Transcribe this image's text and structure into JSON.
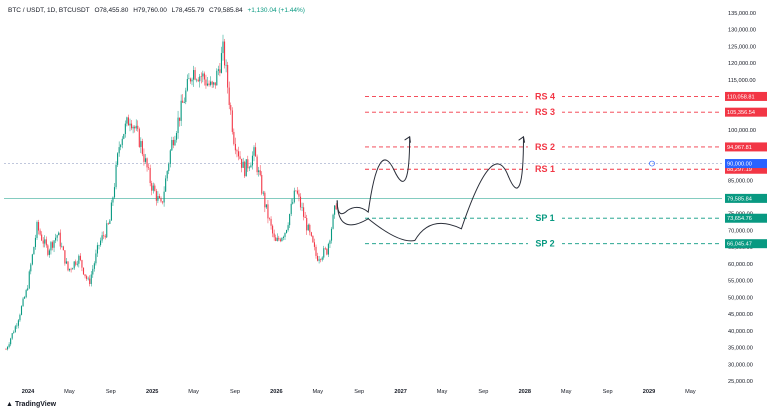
{
  "header": {
    "symbol": "BTC / USDT, 1D, BTCUSDT",
    "open": "O78,455.80",
    "high": "H79,760.00",
    "low": "L78,455.79",
    "close": "C79,585.84",
    "change": "+1,130.04 (+1.44%)"
  },
  "branding": {
    "logo_text": "TradingView"
  },
  "colors": {
    "bull": "#089981",
    "bear": "#f23645",
    "resistance": "#f23645",
    "support": "#089981",
    "price_line": "#089981",
    "tag_90k": "#2962ff"
  },
  "chart_data": {
    "type": "candlestick",
    "title": "BTC / USDT, 1D, BTCUSDT",
    "xlabel": "",
    "ylabel": "",
    "ylim": [
      25000,
      135000
    ],
    "x_ticks": [
      "2024",
      "May",
      "Sep",
      "2025",
      "May",
      "Sep",
      "2026",
      "May",
      "Sep",
      "2027",
      "May",
      "Sep",
      "2028",
      "May",
      "Sep",
      "2029",
      "May"
    ],
    "y_ticks": [
      "135,000.00",
      "130,000.00",
      "125,000.00",
      "120,000.00",
      "115,000.00",
      "110,000.00",
      "105,000.00",
      "100,000.00",
      "95,000.00",
      "90,000.00",
      "85,000.00",
      "80,000.00",
      "75,000.00",
      "70,000.00",
      "65,000.00",
      "60,000.00",
      "55,000.00",
      "50,000.00",
      "45,000.00",
      "40,000.00",
      "35,000.00",
      "30,000.00",
      "25,000.00"
    ],
    "price_path": [
      [
        "2024-01",
        34500
      ],
      [
        "2024-02",
        42000
      ],
      [
        "2024-03",
        52000
      ],
      [
        "2024-04",
        71000
      ],
      [
        "2024-05",
        64000
      ],
      [
        "2024-06",
        69000
      ],
      [
        "2024-07",
        58000
      ],
      [
        "2024-08",
        62000
      ],
      [
        "2024-09",
        54000
      ],
      [
        "2024-10",
        66000
      ],
      [
        "2024-11",
        72000
      ],
      [
        "2024-12",
        97000
      ],
      [
        "2025-01",
        104000
      ],
      [
        "2025-02",
        96000
      ],
      [
        "2025-03",
        84000
      ],
      [
        "2025-04",
        77000
      ],
      [
        "2025-05",
        96000
      ],
      [
        "2025-06",
        107000
      ],
      [
        "2025-07",
        118000
      ],
      [
        "2025-08",
        116000
      ],
      [
        "2025-09",
        112000
      ],
      [
        "2025-10",
        124000
      ],
      [
        "2025-11",
        98000
      ],
      [
        "2025-12",
        88000
      ],
      [
        "2026-01",
        93000
      ],
      [
        "2026-02",
        78000
      ],
      [
        "2026-03",
        66000
      ],
      [
        "2026-04",
        70000
      ],
      [
        "2026-05",
        82000
      ],
      [
        "2026-06",
        72000
      ],
      [
        "2026-07",
        62000
      ],
      [
        "2026-08",
        64000
      ],
      [
        "2026-09",
        79585
      ]
    ],
    "levels": [
      {
        "label": "RS 4",
        "price": 110058.81,
        "tag": "110,058.81",
        "kind": "resistance"
      },
      {
        "label": "RS 3",
        "price": 105356.54,
        "tag": "105,356.54",
        "kind": "resistance"
      },
      {
        "label": "RS 2",
        "price": 94967.81,
        "tag": "94,967.81",
        "kind": "resistance"
      },
      {
        "label": "RS 1",
        "price": 88297.19,
        "tag": "88,297.19",
        "kind": "resistance"
      },
      {
        "label": "SP 1",
        "price": 73654.76,
        "tag": "73,654.76",
        "kind": "support"
      },
      {
        "label": "SP 2",
        "price": 66045.47,
        "tag": "66,045.47",
        "kind": "support"
      }
    ],
    "last_price": {
      "price": 79585.84,
      "tag": "79,585.84"
    },
    "horizontal_line": {
      "price": 90000,
      "tag": "90,000.00"
    },
    "projections": [
      {
        "points": [
          [
            "2026-09",
            79000
          ],
          [
            "2026-11",
            73000
          ],
          [
            "2027-01",
            78000
          ],
          [
            "2027-04",
            98000
          ]
        ]
      },
      {
        "points": [
          [
            "2026-09",
            79000
          ],
          [
            "2027-03",
            68000
          ],
          [
            "2027-06",
            66000
          ],
          [
            "2027-12",
            75000
          ],
          [
            "2028-03",
            98000
          ]
        ]
      }
    ]
  }
}
